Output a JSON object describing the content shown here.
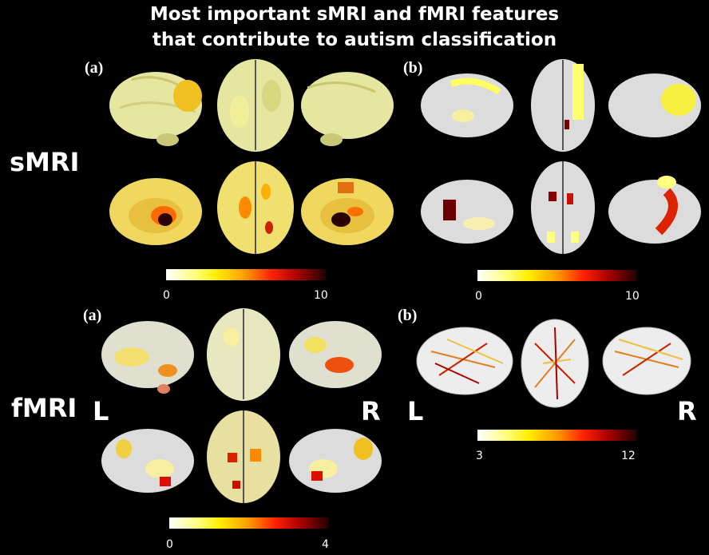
{
  "title": {
    "line1": "Most important sMRI and fMRI features",
    "line2": "that contribute to autism classification"
  },
  "rows": {
    "smri_label": "sMRI",
    "fmri_label": "fMRI"
  },
  "panels": {
    "smri_a": {
      "label": "(a)",
      "colorbar": {
        "min_label": "0",
        "max_label": "10"
      }
    },
    "smri_b": {
      "label": "(b)",
      "colorbar": {
        "min_label": "0",
        "max_label": "10"
      }
    },
    "fmri_a": {
      "label": "(a)",
      "colorbar": {
        "min_label": "0",
        "max_label": "4"
      },
      "left_label": "L",
      "right_label": "R"
    },
    "fmri_b": {
      "label": "(b)",
      "colorbar": {
        "min_label": "3",
        "max_label": "12"
      },
      "left_label": "L",
      "right_label": "R"
    }
  },
  "colormap": [
    "#ffffff",
    "#ffff80",
    "#ffee00",
    "#ff9900",
    "#ff2200",
    "#aa0000",
    "#200000"
  ]
}
